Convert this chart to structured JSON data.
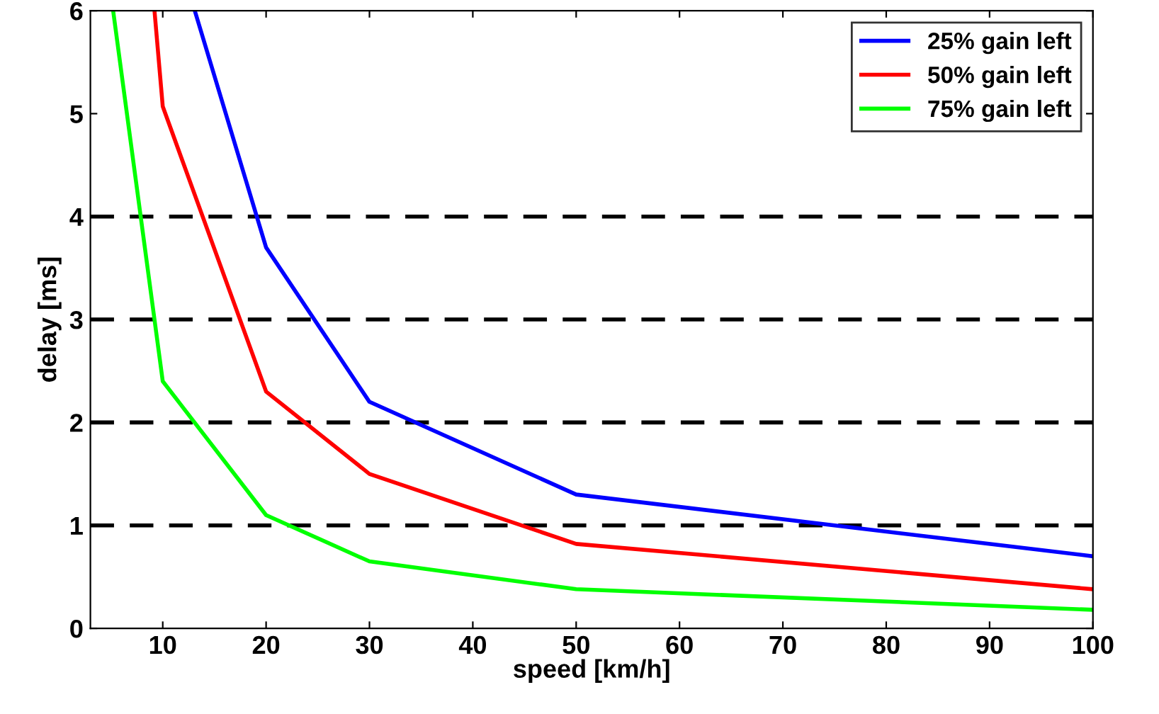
{
  "chart_data": {
    "type": "line",
    "xlabel": "speed [km/h]",
    "ylabel": "delay [ms]",
    "xlim": [
      3,
      100
    ],
    "ylim": [
      0,
      6
    ],
    "xticks": [
      10,
      20,
      30,
      40,
      50,
      60,
      70,
      80,
      90,
      100
    ],
    "yticks": [
      0,
      1,
      2,
      3,
      4,
      5,
      6
    ],
    "grid": false,
    "legend": "top right",
    "marker": "none",
    "line_style": "solid",
    "series": [
      {
        "name": "25% gain left",
        "color": "#0000ff",
        "x": [
          13.1,
          20,
          30,
          50,
          100
        ],
        "values": [
          6,
          3.7,
          2.2,
          1.3,
          0.7
        ]
      },
      {
        "name": "50% gain left",
        "color": "#ff0000",
        "x": [
          9.2,
          10,
          20,
          30,
          50,
          100
        ],
        "values": [
          6,
          5.07,
          2.3,
          1.5,
          0.82,
          0.38
        ]
      },
      {
        "name": "75% gain left",
        "color": "#00ff00",
        "x": [
          5.2,
          10,
          20,
          30,
          50,
          100
        ],
        "values": [
          6,
          2.4,
          1.1,
          0.65,
          0.38,
          0.18
        ]
      }
    ],
    "ref_lines": [
      {
        "axis": "y",
        "value": 1,
        "color": "#000000",
        "line_style": "dashed"
      },
      {
        "axis": "y",
        "value": 2,
        "color": "#000000",
        "line_style": "dashed"
      },
      {
        "axis": "y",
        "value": 3,
        "color": "#000000",
        "line_style": "dashed"
      },
      {
        "axis": "y",
        "value": 4,
        "color": "#000000",
        "line_style": "dashed"
      }
    ]
  }
}
